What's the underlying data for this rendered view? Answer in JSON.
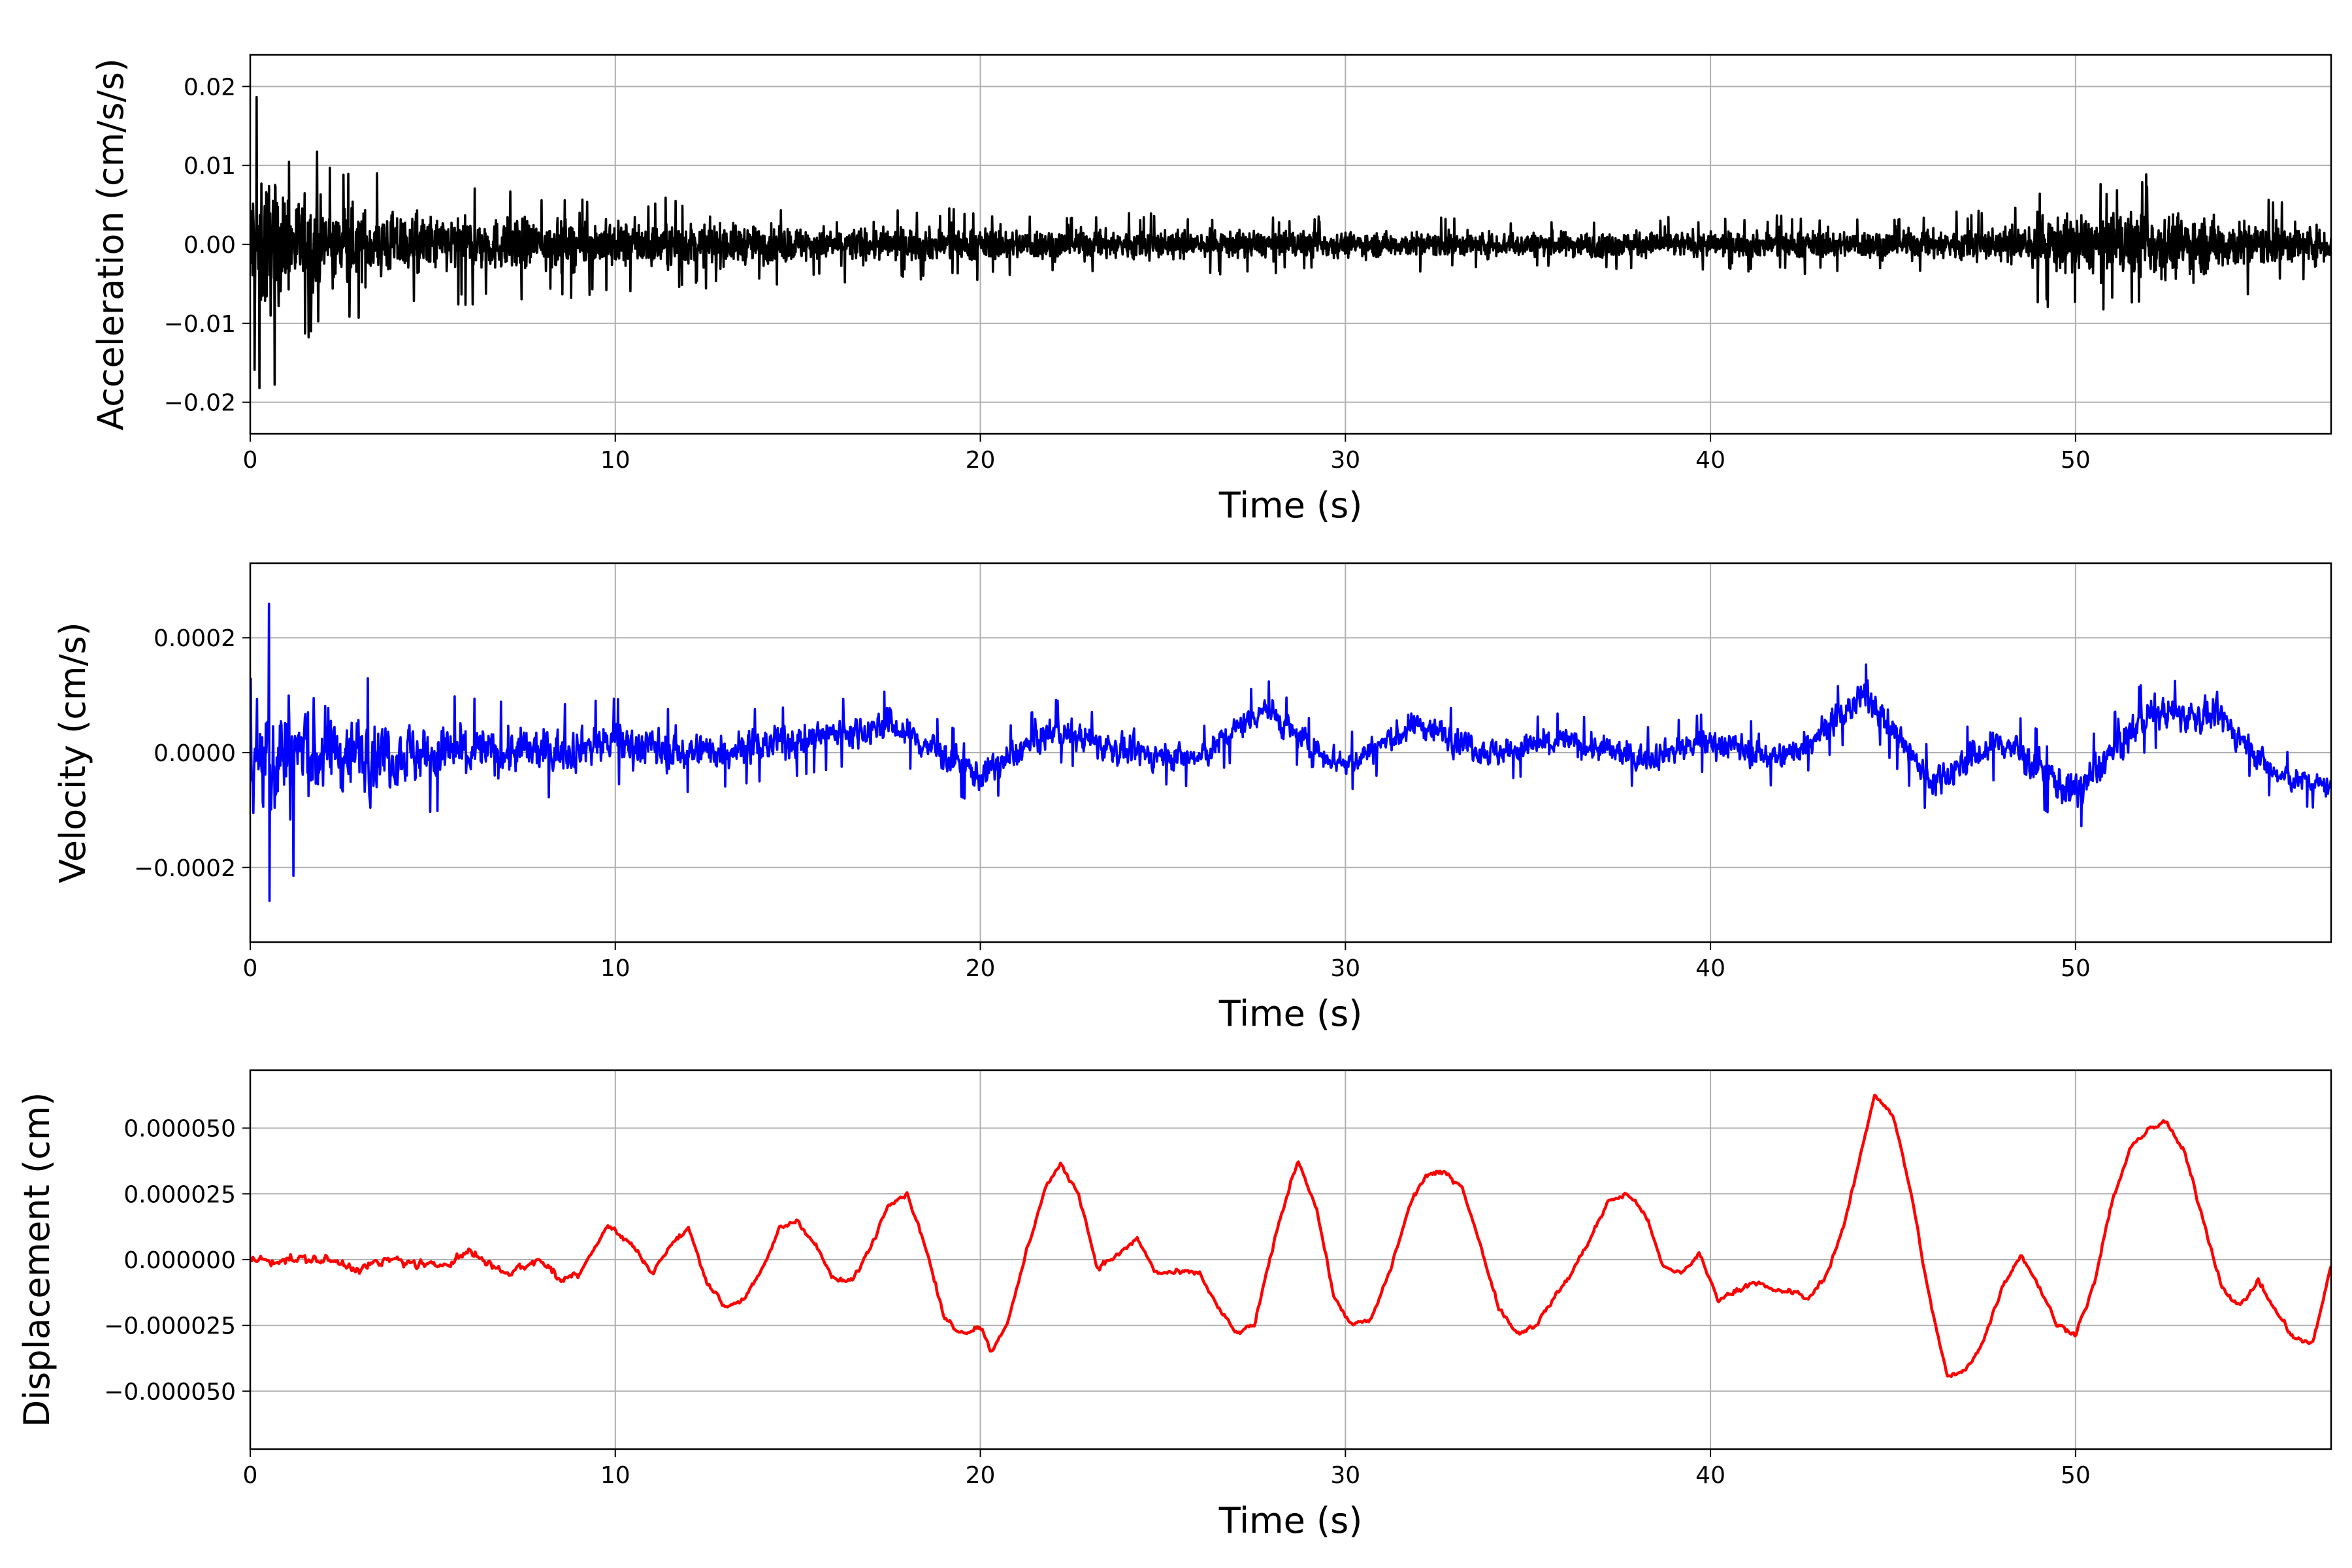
{
  "chart_data": [
    {
      "type": "line",
      "xlabel": "Time (s)",
      "ylabel": "Acceleration (cm/s/s)",
      "color": "#000000",
      "grid": true,
      "xlim": [
        0,
        57
      ],
      "ylim": [
        -0.024,
        0.024
      ],
      "x_ticks": [
        0,
        10,
        20,
        30,
        40,
        50
      ],
      "x_tick_labels": [
        "0",
        "10",
        "20",
        "30",
        "40",
        "50"
      ],
      "y_ticks": [
        -0.02,
        -0.01,
        0.0,
        0.01,
        0.02
      ],
      "y_tick_labels": [
        "−0.02",
        "−0.01",
        "0.00",
        "0.01",
        "0.02"
      ],
      "signal": "dense oscillation around zero",
      "envelope": {
        "t": [
          0,
          0.4,
          1,
          2,
          3,
          5,
          8,
          10,
          15,
          20,
          25,
          30,
          35,
          40,
          45,
          48,
          49,
          50,
          52,
          53,
          55,
          57
        ],
        "amplitude": [
          0.02,
          0.021,
          0.014,
          0.012,
          0.01,
          0.008,
          0.007,
          0.0065,
          0.005,
          0.0045,
          0.004,
          0.0035,
          0.0035,
          0.0035,
          0.004,
          0.0045,
          0.008,
          0.008,
          0.009,
          0.009,
          0.006,
          0.005
        ]
      }
    },
    {
      "type": "line",
      "xlabel": "Time (s)",
      "ylabel": "Velocity (cm/s)",
      "color": "#0000ff",
      "grid": true,
      "xlim": [
        0,
        57
      ],
      "ylim": [
        -0.00033,
        0.00033
      ],
      "x_ticks": [
        0,
        10,
        20,
        30,
        40,
        50
      ],
      "x_tick_labels": [
        "0",
        "10",
        "20",
        "30",
        "40",
        "50"
      ],
      "y_ticks": [
        -0.0002,
        0.0,
        0.0002
      ],
      "y_tick_labels": [
        "−0.0002",
        "0.0000",
        "0.0002"
      ],
      "trend": {
        "t": [
          0,
          2,
          5,
          8,
          10,
          12,
          15,
          17.5,
          20,
          22,
          24,
          26,
          27.8,
          29,
          30,
          32,
          34,
          36,
          38,
          40,
          42,
          44.3,
          46,
          48,
          49.5,
          50,
          52,
          54,
          55.5,
          57
        ],
        "v": [
          0,
          0,
          0,
          0,
          2e-05,
          0,
          2e-05,
          5e-05,
          -4e-05,
          4e-05,
          0,
          -1e-05,
          8e-05,
          1e-05,
          -2e-05,
          5e-05,
          0,
          2e-05,
          -1e-05,
          2e-05,
          -1e-05,
          0.0001,
          -5e-05,
          2e-05,
          -5e-05,
          -7e-05,
          7e-05,
          6e-05,
          -4e-05,
          -6e-05
        ]
      },
      "noise_amplitude": {
        "t": [
          0,
          0.5,
          2,
          4,
          8,
          15,
          25,
          40,
          48,
          50,
          57
        ],
        "amplitude": [
          0.00028,
          0.00026,
          0.00016,
          0.00011,
          8e-05,
          6e-05,
          5e-05,
          5e-05,
          6e-05,
          7e-05,
          4e-05
        ]
      }
    },
    {
      "type": "line",
      "xlabel": "Time (s)",
      "ylabel": "Displacement (cm)",
      "color": "#ff0000",
      "grid": true,
      "xlim": [
        0,
        57
      ],
      "ylim": [
        -7.2e-05,
        7.2e-05
      ],
      "x_ticks": [
        0,
        10,
        20,
        30,
        40,
        50
      ],
      "x_tick_labels": [
        "0",
        "10",
        "20",
        "30",
        "40",
        "50"
      ],
      "y_ticks": [
        -5e-05,
        -2.5e-05,
        0.0,
        2.5e-05,
        5e-05
      ],
      "y_tick_labels": [
        "−0.000050",
        "−0.000025",
        "0.000000",
        "0.000025",
        "0.000050"
      ],
      "x": [
        0,
        1,
        2,
        3,
        4,
        5,
        6,
        7,
        8,
        8.5,
        9,
        9.8,
        10.5,
        11,
        11.5,
        12,
        12.5,
        13,
        13.5,
        14,
        14.5,
        15,
        15.5,
        16,
        16.5,
        17,
        17.5,
        18,
        18.5,
        19,
        19.5,
        20,
        20.3,
        20.8,
        21.3,
        21.8,
        22.2,
        22.7,
        23.2,
        23.8,
        24.3,
        24.8,
        25.3,
        26,
        26.5,
        27,
        27.5,
        28.2,
        28.7,
        29.2,
        29.7,
        30.2,
        30.7,
        31.2,
        31.8,
        32.2,
        32.7,
        33.2,
        33.7,
        34.2,
        34.7,
        35.2,
        35.7,
        36.2,
        36.7,
        37.2,
        37.7,
        38.2,
        38.7,
        39.2,
        39.7,
        40.2,
        40.7,
        41.2,
        41.7,
        42.2,
        42.7,
        43.2,
        43.7,
        44.2,
        44.5,
        45,
        45.5,
        46,
        46.5,
        47,
        47.5,
        48,
        48.5,
        49,
        49.5,
        50,
        50.5,
        51,
        51.5,
        52,
        52.5,
        53,
        53.5,
        54,
        54.5,
        55,
        55.5,
        56,
        56.5,
        57
      ],
      "y": [
        0,
        0,
        0,
        -3e-06,
        0,
        -3e-06,
        3e-06,
        -5e-06,
        0,
        -8e-06,
        -5e-06,
        1.3e-05,
        5e-06,
        -5e-06,
        5e-06,
        1.2e-05,
        -8e-06,
        -1.8e-05,
        -1.5e-05,
        -5e-06,
        1.2e-05,
        1.5e-05,
        5e-06,
        -8e-06,
        -8e-06,
        5e-06,
        2.2e-05,
        2.5e-05,
        5e-06,
        -2.2e-05,
        -2.8e-05,
        -2.5e-05,
        -3.5e-05,
        -2.2e-05,
        5e-06,
        2.8e-05,
        3.6e-05,
        2.5e-05,
        -3e-06,
        2e-06,
        8e-06,
        -5e-06,
        -5e-06,
        -5e-06,
        -1.8e-05,
        -2.8e-05,
        -2.5e-05,
        1.5e-05,
        3.8e-05,
        2e-05,
        -1.5e-05,
        -2.5e-05,
        -2.3e-05,
        -5e-06,
        2.2e-05,
        3.2e-05,
        3.3e-05,
        2.8e-05,
        5e-06,
        -1.8e-05,
        -2.8e-05,
        -2.5e-05,
        -1.5e-05,
        -5e-06,
        8e-06,
        2.2e-05,
        2.5e-05,
        1.8e-05,
        -3e-06,
        -5e-06,
        2e-06,
        -1.5e-05,
        -1.2e-05,
        -8e-06,
        -1.2e-05,
        -1.2e-05,
        -1.5e-05,
        -5e-06,
        1.5e-05,
        4.5e-05,
        6.3e-05,
        5.5e-05,
        2.5e-05,
        -1.5e-05,
        -4.5e-05,
        -4.2e-05,
        -3e-05,
        -1e-05,
        2e-06,
        -1e-05,
        -2.5e-05,
        -2.8e-05,
        -1e-05,
        2.2e-05,
        4.2e-05,
        5e-05,
        5.2e-05,
        4e-05,
        1.5e-05,
        -1e-05,
        -1.8e-05,
        -8e-06,
        -2e-05,
        -3e-05,
        -3.2e-05,
        -2e-06
      ]
    }
  ]
}
